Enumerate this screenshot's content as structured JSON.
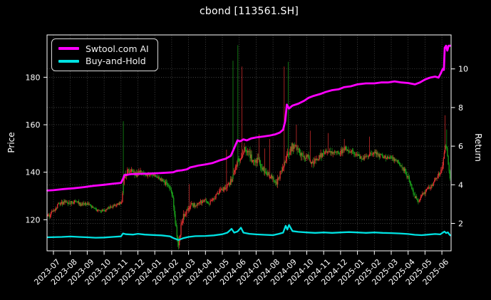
{
  "colors": {
    "background": "#000000",
    "text": "#ffffff",
    "grid": "#7a7a7a",
    "spine": "#ffffff",
    "up_candle": "#e33030",
    "down_candle": "#1aa21a"
  },
  "chart_data": {
    "type": "candlestick+line",
    "title": "cbond [113561.SH]",
    "ylabel_left": "Price",
    "ylabel_right": "Return",
    "grid": true,
    "legend_position": "upper left",
    "time_unit": "months since 2023-07 tick",
    "x_tick_labels": [
      "2023-07",
      "2023-08",
      "2023-09",
      "2023-10",
      "2023-11",
      "2023-12",
      "2024-01",
      "2024-02",
      "2024-03",
      "2024-04",
      "2024-05",
      "2024-06",
      "2024-07",
      "2024-08",
      "2024-09",
      "2024-10",
      "2024-11",
      "2024-12",
      "2025-01",
      "2025-02",
      "2025-03",
      "2025-04",
      "2025-05",
      "2025-06"
    ],
    "y_ticks_left": [
      120,
      140,
      160,
      180
    ],
    "y_ticks_right": [
      2,
      4,
      6,
      8,
      10
    ],
    "price_axis_range": [
      106.8,
      197.9
    ],
    "return_axis_range": [
      0.56,
      11.76
    ],
    "candles": {
      "anchors_close": [
        [
          -0.36,
          121.5
        ],
        [
          -0.2,
          122
        ],
        [
          0,
          124
        ],
        [
          0.3,
          126.5
        ],
        [
          0.7,
          127.5
        ],
        [
          1,
          127
        ],
        [
          1.3,
          128
        ],
        [
          1.6,
          126.5
        ],
        [
          2,
          126.8
        ],
        [
          2.3,
          125
        ],
        [
          2.6,
          124
        ],
        [
          3,
          123.8
        ],
        [
          3.3,
          125
        ],
        [
          3.6,
          126
        ],
        [
          3.9,
          126.8
        ],
        [
          4.05,
          128
        ],
        [
          4.18,
          138.5
        ],
        [
          4.35,
          140
        ],
        [
          4.6,
          141
        ],
        [
          4.9,
          139
        ],
        [
          5.2,
          140.5
        ],
        [
          5.5,
          139
        ],
        [
          5.8,
          139.5
        ],
        [
          6.1,
          138
        ],
        [
          6.4,
          136.5
        ],
        [
          6.7,
          135
        ],
        [
          7.0,
          132
        ],
        [
          7.15,
          124
        ],
        [
          7.3,
          113.5
        ],
        [
          7.4,
          110
        ],
        [
          7.55,
          117
        ],
        [
          7.7,
          122
        ],
        [
          7.9,
          124
        ],
        [
          8.1,
          126.5
        ],
        [
          8.4,
          126
        ],
        [
          8.7,
          127.5
        ],
        [
          9,
          128.5
        ],
        [
          9.2,
          126.5
        ],
        [
          9.5,
          129
        ],
        [
          9.8,
          131.5
        ],
        [
          10.1,
          133.5
        ],
        [
          10.4,
          135
        ],
        [
          10.7,
          139
        ],
        [
          10.9,
          144
        ],
        [
          11.1,
          147
        ],
        [
          11.3,
          149
        ],
        [
          11.5,
          150
        ],
        [
          11.7,
          146
        ],
        [
          11.9,
          143.5
        ],
        [
          12.1,
          145
        ],
        [
          12.4,
          141
        ],
        [
          12.7,
          139
        ],
        [
          13,
          137.5
        ],
        [
          13.15,
          134.5
        ],
        [
          13.4,
          139
        ],
        [
          13.6,
          142
        ],
        [
          13.8,
          146
        ],
        [
          14,
          149
        ],
        [
          14.2,
          151
        ],
        [
          14.5,
          149
        ],
        [
          14.8,
          146
        ],
        [
          15,
          147.5
        ],
        [
          15.3,
          144
        ],
        [
          15.6,
          146
        ],
        [
          16,
          147.5
        ],
        [
          16.3,
          149
        ],
        [
          16.6,
          148
        ],
        [
          17,
          148.5
        ],
        [
          17.3,
          150
        ],
        [
          17.6,
          149
        ],
        [
          18,
          147.5
        ],
        [
          18.3,
          145.5
        ],
        [
          18.6,
          147
        ],
        [
          19,
          148.5
        ],
        [
          19.3,
          147
        ],
        [
          19.6,
          146.5
        ],
        [
          20,
          146
        ],
        [
          20.4,
          144
        ],
        [
          20.8,
          140.5
        ],
        [
          21.1,
          136
        ],
        [
          21.35,
          130.5
        ],
        [
          21.6,
          127.8
        ],
        [
          21.85,
          130.5
        ],
        [
          22.1,
          132.5
        ],
        [
          22.4,
          134.5
        ],
        [
          22.7,
          138
        ],
        [
          23,
          141.5
        ],
        [
          23.1,
          147
        ],
        [
          23.2,
          152
        ],
        [
          23.3,
          149
        ],
        [
          23.4,
          142
        ],
        [
          23.5,
          136.5
        ]
      ],
      "volatility": [
        [
          -0.36,
          1.3
        ],
        [
          1,
          1.4
        ],
        [
          2,
          1.1
        ],
        [
          3,
          1.0
        ],
        [
          4.0,
          1.0
        ],
        [
          4.2,
          2.0
        ],
        [
          5,
          1.8
        ],
        [
          6,
          1.3
        ],
        [
          6.8,
          1.6
        ],
        [
          7.2,
          2.6
        ],
        [
          7.5,
          2.8
        ],
        [
          8,
          2.0
        ],
        [
          8.5,
          1.4
        ],
        [
          9,
          1.3
        ],
        [
          9.8,
          1.5
        ],
        [
          10.5,
          2.2
        ],
        [
          11,
          3.2
        ],
        [
          11.6,
          2.6
        ],
        [
          12.2,
          2.3
        ],
        [
          12.8,
          2.1
        ],
        [
          13.2,
          2.0
        ],
        [
          13.7,
          2.8
        ],
        [
          14.2,
          3.0
        ],
        [
          14.8,
          2.6
        ],
        [
          15.5,
          2.2
        ],
        [
          16.2,
          2.0
        ],
        [
          17,
          1.7
        ],
        [
          18,
          1.6
        ],
        [
          19,
          1.7
        ],
        [
          20,
          1.4
        ],
        [
          21,
          1.7
        ],
        [
          21.7,
          1.4
        ],
        [
          22.5,
          1.2
        ],
        [
          23.1,
          2.0
        ],
        [
          23.5,
          1.8
        ]
      ],
      "spikes": [
        {
          "t": 4.15,
          "price": 161.5,
          "dir": "up",
          "color": "green"
        },
        {
          "t": 7.38,
          "price": 108.5,
          "dir": "down",
          "color": "green"
        },
        {
          "t": 8.05,
          "price": 135.0,
          "dir": "up",
          "color": "red"
        },
        {
          "t": 10.25,
          "price": 149.5,
          "dir": "up",
          "color": "red"
        },
        {
          "t": 10.63,
          "price": 187.0,
          "dir": "up",
          "color": "green"
        },
        {
          "t": 10.93,
          "price": 193.5,
          "dir": "up",
          "color": "green"
        },
        {
          "t": 11.18,
          "price": 184.5,
          "dir": "up",
          "color": "red"
        },
        {
          "t": 12.15,
          "price": 156.0,
          "dir": "up",
          "color": "red"
        },
        {
          "t": 12.5,
          "price": 150.0,
          "dir": "up",
          "color": "red"
        },
        {
          "t": 12.8,
          "price": 154.0,
          "dir": "up",
          "color": "red"
        },
        {
          "t": 13.67,
          "price": 184.5,
          "dir": "up",
          "color": "red"
        },
        {
          "t": 13.9,
          "price": 186.5,
          "dir": "up",
          "color": "green"
        },
        {
          "t": 14.4,
          "price": 160.0,
          "dir": "up",
          "color": "red"
        },
        {
          "t": 15.2,
          "price": 157.5,
          "dir": "up",
          "color": "red"
        },
        {
          "t": 16.25,
          "price": 156.5,
          "dir": "up",
          "color": "red"
        },
        {
          "t": 17.2,
          "price": 154.0,
          "dir": "up",
          "color": "red"
        },
        {
          "t": 18.7,
          "price": 155.0,
          "dir": "up",
          "color": "red"
        },
        {
          "t": 23.18,
          "price": 164.0,
          "dir": "up",
          "color": "red"
        },
        {
          "t": 23.28,
          "price": 158.0,
          "dir": "up",
          "color": "green"
        }
      ]
    },
    "series": [
      {
        "name": "Swtool.com AI",
        "axis": "return",
        "color": "#ff00ff",
        "points": [
          [
            -0.36,
            3.7
          ],
          [
            0,
            3.72
          ],
          [
            0.6,
            3.78
          ],
          [
            1.2,
            3.82
          ],
          [
            1.8,
            3.88
          ],
          [
            2.4,
            3.95
          ],
          [
            3,
            4.0
          ],
          [
            3.5,
            4.05
          ],
          [
            4.0,
            4.1
          ],
          [
            4.12,
            4.3
          ],
          [
            4.2,
            4.5
          ],
          [
            4.6,
            4.55
          ],
          [
            5.0,
            4.56
          ],
          [
            5.6,
            4.58
          ],
          [
            6.2,
            4.6
          ],
          [
            6.8,
            4.63
          ],
          [
            7.1,
            4.65
          ],
          [
            7.3,
            4.72
          ],
          [
            7.6,
            4.75
          ],
          [
            7.9,
            4.8
          ],
          [
            8.1,
            4.9
          ],
          [
            8.35,
            4.95
          ],
          [
            8.6,
            5.0
          ],
          [
            9,
            5.05
          ],
          [
            9.4,
            5.12
          ],
          [
            9.8,
            5.25
          ],
          [
            10.2,
            5.35
          ],
          [
            10.5,
            5.5
          ],
          [
            10.63,
            5.75
          ],
          [
            10.75,
            6.0
          ],
          [
            10.9,
            6.3
          ],
          [
            11.05,
            6.25
          ],
          [
            11.25,
            6.35
          ],
          [
            11.45,
            6.3
          ],
          [
            11.7,
            6.4
          ],
          [
            12,
            6.45
          ],
          [
            12.4,
            6.5
          ],
          [
            12.8,
            6.55
          ],
          [
            13.1,
            6.6
          ],
          [
            13.4,
            6.7
          ],
          [
            13.6,
            6.85
          ],
          [
            13.72,
            7.3
          ],
          [
            13.82,
            8.15
          ],
          [
            13.95,
            7.95
          ],
          [
            14.15,
            8.1
          ],
          [
            14.5,
            8.2
          ],
          [
            14.85,
            8.35
          ],
          [
            15.1,
            8.5
          ],
          [
            15.4,
            8.6
          ],
          [
            15.8,
            8.7
          ],
          [
            16.1,
            8.8
          ],
          [
            16.5,
            8.9
          ],
          [
            16.9,
            8.95
          ],
          [
            17.2,
            9.05
          ],
          [
            17.6,
            9.1
          ],
          [
            18,
            9.2
          ],
          [
            18.5,
            9.25
          ],
          [
            19,
            9.25
          ],
          [
            19.4,
            9.3
          ],
          [
            19.8,
            9.3
          ],
          [
            20.2,
            9.35
          ],
          [
            20.6,
            9.3
          ],
          [
            21,
            9.27
          ],
          [
            21.4,
            9.2
          ],
          [
            21.7,
            9.3
          ],
          [
            22,
            9.45
          ],
          [
            22.3,
            9.55
          ],
          [
            22.6,
            9.6
          ],
          [
            22.8,
            9.55
          ],
          [
            22.95,
            9.8
          ],
          [
            23.05,
            10.0
          ],
          [
            23.12,
            9.95
          ],
          [
            23.17,
            11.1
          ],
          [
            23.25,
            11.2
          ],
          [
            23.32,
            10.95
          ],
          [
            23.4,
            11.2
          ],
          [
            23.5,
            11.2
          ]
        ]
      },
      {
        "name": "Buy-and-Hold",
        "axis": "return",
        "color": "#00e2e2",
        "points": [
          [
            -0.36,
            1.28
          ],
          [
            0.5,
            1.3
          ],
          [
            1,
            1.32
          ],
          [
            1.5,
            1.3
          ],
          [
            2,
            1.28
          ],
          [
            2.5,
            1.26
          ],
          [
            3,
            1.27
          ],
          [
            3.5,
            1.3
          ],
          [
            4,
            1.33
          ],
          [
            4.12,
            1.48
          ],
          [
            4.3,
            1.44
          ],
          [
            4.7,
            1.42
          ],
          [
            5,
            1.46
          ],
          [
            5.4,
            1.42
          ],
          [
            5.9,
            1.4
          ],
          [
            6.4,
            1.38
          ],
          [
            6.9,
            1.33
          ],
          [
            7.15,
            1.22
          ],
          [
            7.4,
            1.14
          ],
          [
            7.7,
            1.24
          ],
          [
            8,
            1.3
          ],
          [
            8.4,
            1.34
          ],
          [
            9,
            1.35
          ],
          [
            9.5,
            1.38
          ],
          [
            10,
            1.44
          ],
          [
            10.3,
            1.52
          ],
          [
            10.55,
            1.72
          ],
          [
            10.7,
            1.52
          ],
          [
            10.9,
            1.58
          ],
          [
            11.1,
            1.78
          ],
          [
            11.25,
            1.52
          ],
          [
            11.6,
            1.46
          ],
          [
            12,
            1.43
          ],
          [
            12.5,
            1.41
          ],
          [
            13,
            1.39
          ],
          [
            13.35,
            1.46
          ],
          [
            13.6,
            1.52
          ],
          [
            13.75,
            1.88
          ],
          [
            13.85,
            1.68
          ],
          [
            13.95,
            1.92
          ],
          [
            14.15,
            1.6
          ],
          [
            14.5,
            1.56
          ],
          [
            15,
            1.53
          ],
          [
            15.5,
            1.51
          ],
          [
            16,
            1.53
          ],
          [
            16.5,
            1.51
          ],
          [
            17,
            1.53
          ],
          [
            17.5,
            1.55
          ],
          [
            18,
            1.53
          ],
          [
            18.5,
            1.51
          ],
          [
            19,
            1.53
          ],
          [
            19.5,
            1.51
          ],
          [
            20,
            1.5
          ],
          [
            20.5,
            1.48
          ],
          [
            21,
            1.45
          ],
          [
            21.4,
            1.41
          ],
          [
            21.8,
            1.39
          ],
          [
            22.2,
            1.42
          ],
          [
            22.6,
            1.45
          ],
          [
            22.9,
            1.43
          ],
          [
            23.05,
            1.52
          ],
          [
            23.15,
            1.58
          ],
          [
            23.25,
            1.5
          ],
          [
            23.35,
            1.54
          ],
          [
            23.45,
            1.42
          ],
          [
            23.5,
            1.38
          ]
        ]
      }
    ]
  }
}
